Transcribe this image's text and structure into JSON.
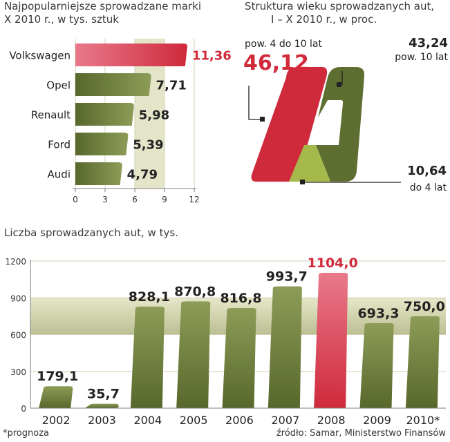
{
  "chart_data": [
    {
      "type": "bar",
      "orientation": "horizontal",
      "title_line1": "Najpopularniejsze sprowadzane marki",
      "title_line2": "X 2010 r., w tys. sztuk",
      "categories": [
        "Volkswagen",
        "Opel",
        "Renault",
        "Ford",
        "Audi"
      ],
      "values": [
        11.36,
        7.71,
        5.98,
        5.39,
        4.79
      ],
      "value_labels": [
        "11,36",
        "7,71",
        "5,98",
        "5,39",
        "4,79"
      ],
      "highlight_index": 0,
      "xlim": [
        0,
        12
      ],
      "ticks": [
        0,
        3,
        6,
        9,
        12
      ],
      "tick_labels": [
        "0",
        "3",
        "6",
        "9",
        "12"
      ]
    },
    {
      "type": "pie",
      "title_line1": "Struktura wieku sprowadzanych aut,",
      "title_line2": "I – X 2010 r., w proc.",
      "slices": [
        {
          "name": "pow. 4 do 10 lat",
          "value": 46.12,
          "label": "46,12",
          "color": "#cf2a3c"
        },
        {
          "name": "pow. 10 lat",
          "value": 43.24,
          "label": "43,24",
          "color": "#5e6e30"
        },
        {
          "name": "do 4 lat",
          "value": 10.64,
          "label": "10,64",
          "color": "#a5b94b"
        }
      ]
    },
    {
      "type": "bar",
      "title": "Liczba sprowadzanych aut, w tys.",
      "categories": [
        "2002",
        "2003",
        "2004",
        "2005",
        "2006",
        "2007",
        "2008",
        "2009",
        "2010*"
      ],
      "values": [
        179.1,
        35.7,
        828.1,
        870.8,
        816.8,
        993.7,
        1104.0,
        693.3,
        750.0
      ],
      "value_labels": [
        "179,1",
        "35,7",
        "828,1",
        "870,8",
        "816,8",
        "993,7",
        "1104,0",
        "693,3",
        "750,0"
      ],
      "highlight_index": 6,
      "ylim": [
        0,
        1200
      ],
      "yticks": [
        0,
        300,
        600,
        900,
        1200
      ],
      "ytick_labels": [
        "0",
        "300",
        "600",
        "900",
        "1200"
      ]
    }
  ],
  "colors": {
    "bar_dark": "#58682c",
    "bar_light": "#8d9c57",
    "bar_red": "#cf2a3c",
    "bar_red_light": "#e8798a",
    "highlight_text": "#d12a3b",
    "band_top": "#e6e7c9",
    "band_bottom": "#bcbf93"
  },
  "footnote": "*prognoza",
  "source": "źródło: Samar, Ministerstwo Finansów"
}
